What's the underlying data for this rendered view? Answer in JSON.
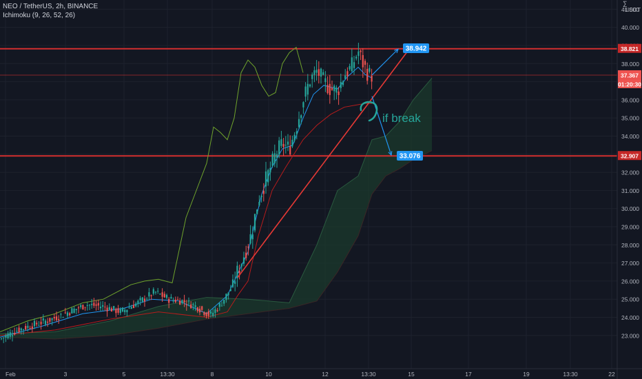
{
  "header": {
    "symbol_line": "NEO / TetherUS, 2h, BINANCE",
    "indicator_line": "Ichimoku (9, 26, 52, 26)"
  },
  "axis": {
    "currency": "USDT"
  },
  "price_axis": {
    "ticks": [
      "41.000",
      "40.000",
      "39.000",
      "38.000",
      "37.000",
      "36.000",
      "35.000",
      "34.000",
      "33.000",
      "32.000",
      "31.000",
      "30.000",
      "29.000",
      "28.000",
      "27.000",
      "26.000",
      "25.000",
      "24.000",
      "23.000"
    ],
    "tags": {
      "resistance": "38.821",
      "current": "37.367",
      "countdown": "01:20:30",
      "support": "32.907"
    }
  },
  "time_axis": {
    "ticks": [
      "Feb",
      "3",
      "5",
      "13:30",
      "8",
      "10",
      "12",
      "13:30",
      "15",
      "17",
      "19",
      "13:30",
      "22"
    ]
  },
  "annotations": {
    "target_up": "38.942",
    "target_down": "33.076",
    "note": "if break"
  },
  "colors": {
    "background": "#131722",
    "up": "#26a69a",
    "down": "#ef5350",
    "level_line": "#d32f2f",
    "tag_blue": "#2196f3",
    "note_text": "#26a69a",
    "lagging_span": "#6fa32c",
    "conversion_line": "#2196f3",
    "base_line": "#b71c1c",
    "cloud_bear": "#1b3a2c",
    "arrow": "#2196f3",
    "trendline": "#e53935"
  },
  "chart_data": {
    "type": "candlestick",
    "ylim": [
      22.5,
      41.5
    ],
    "xlim": [
      0,
      920
    ],
    "levels": [
      38.821,
      32.907
    ],
    "current_price": 37.367,
    "x_ticks": [
      {
        "label": "Feb",
        "x": 8
      },
      {
        "label": "3",
        "x": 95
      },
      {
        "label": "5",
        "x": 180
      },
      {
        "label": "13:30",
        "x": 243
      },
      {
        "label": "8",
        "x": 308
      },
      {
        "label": "10",
        "x": 390
      },
      {
        "label": "12",
        "x": 472
      },
      {
        "label": "13:30",
        "x": 535
      },
      {
        "label": "15",
        "x": 597
      },
      {
        "label": "17",
        "x": 680
      },
      {
        "label": "19",
        "x": 764
      },
      {
        "label": "13:30",
        "x": 828
      },
      {
        "label": "22",
        "x": 888
      }
    ],
    "candle_anchors": [
      [
        0,
        22.8
      ],
      [
        25,
        23.3
      ],
      [
        50,
        23.6
      ],
      [
        75,
        23.9
      ],
      [
        100,
        24.3
      ],
      [
        125,
        24.7
      ],
      [
        150,
        24.6
      ],
      [
        175,
        24.3
      ],
      [
        200,
        24.8
      ],
      [
        225,
        25.4
      ],
      [
        245,
        25.0
      ],
      [
        265,
        24.9
      ],
      [
        285,
        24.6
      ],
      [
        305,
        24.1
      ],
      [
        320,
        24.7
      ],
      [
        335,
        25.6
      ],
      [
        350,
        27.0
      ],
      [
        365,
        28.6
      ],
      [
        375,
        30.5
      ],
      [
        390,
        32.0
      ],
      [
        400,
        33.0
      ],
      [
        410,
        33.6
      ],
      [
        420,
        33.3
      ],
      [
        430,
        34.5
      ],
      [
        440,
        36.0
      ],
      [
        450,
        37.1
      ],
      [
        460,
        37.6
      ],
      [
        470,
        37.0
      ],
      [
        480,
        36.6
      ],
      [
        490,
        36.5
      ],
      [
        500,
        37.4
      ],
      [
        510,
        37.8
      ],
      [
        520,
        38.7
      ],
      [
        528,
        37.9
      ],
      [
        535,
        37.4
      ],
      [
        540,
        37.367
      ]
    ],
    "trendline": [
      [
        345,
        26.2
      ],
      [
        598,
        39.0
      ]
    ],
    "arrow_up": [
      [
        540,
        37.367
      ],
      [
        578,
        38.8
      ]
    ],
    "arrow_down": [
      [
        540,
        36.2
      ],
      [
        568,
        32.95
      ]
    ],
    "lagging_span": [
      [
        0,
        23.2
      ],
      [
        40,
        23.8
      ],
      [
        80,
        24.2
      ],
      [
        120,
        24.8
      ],
      [
        150,
        25.0
      ],
      [
        170,
        25.4
      ],
      [
        190,
        25.8
      ],
      [
        210,
        26.0
      ],
      [
        230,
        26.1
      ],
      [
        250,
        25.9
      ],
      [
        270,
        29.5
      ],
      [
        290,
        31.5
      ],
      [
        300,
        32.5
      ],
      [
        310,
        34.5
      ],
      [
        320,
        34.2
      ],
      [
        330,
        33.8
      ],
      [
        340,
        35.0
      ],
      [
        350,
        37.5
      ],
      [
        360,
        38.2
      ],
      [
        370,
        37.8
      ],
      [
        380,
        36.8
      ],
      [
        390,
        36.2
      ],
      [
        400,
        36.4
      ],
      [
        410,
        38.0
      ],
      [
        420,
        38.6
      ],
      [
        430,
        38.9
      ],
      [
        440,
        37.5
      ]
    ],
    "conversion_line": [
      [
        0,
        22.9
      ],
      [
        60,
        23.5
      ],
      [
        120,
        24.2
      ],
      [
        180,
        24.5
      ],
      [
        220,
        25.0
      ],
      [
        260,
        24.9
      ],
      [
        300,
        24.2
      ],
      [
        330,
        25.2
      ],
      [
        360,
        27.6
      ],
      [
        380,
        30.8
      ],
      [
        395,
        32.3
      ],
      [
        410,
        33.3
      ],
      [
        425,
        33.5
      ],
      [
        440,
        35.0
      ],
      [
        455,
        36.3
      ],
      [
        470,
        36.8
      ],
      [
        490,
        36.6
      ],
      [
        505,
        37.3
      ],
      [
        520,
        37.8
      ],
      [
        530,
        37.4
      ],
      [
        540,
        37.2
      ]
    ],
    "base_line": [
      [
        0,
        23.0
      ],
      [
        80,
        23.3
      ],
      [
        160,
        23.9
      ],
      [
        230,
        24.3
      ],
      [
        300,
        24.0
      ],
      [
        330,
        24.3
      ],
      [
        345,
        25.2
      ],
      [
        360,
        26.0
      ],
      [
        375,
        28.5
      ],
      [
        395,
        31.0
      ],
      [
        415,
        32.3
      ],
      [
        440,
        33.8
      ],
      [
        460,
        34.6
      ],
      [
        480,
        35.2
      ],
      [
        500,
        35.6
      ],
      [
        530,
        35.8
      ],
      [
        540,
        35.8
      ]
    ],
    "cloud_upper": [
      [
        0,
        23.1
      ],
      [
        80,
        23.2
      ],
      [
        160,
        23.8
      ],
      [
        230,
        24.6
      ],
      [
        300,
        25.1
      ],
      [
        360,
        25.0
      ],
      [
        420,
        24.8
      ],
      [
        460,
        28.0
      ],
      [
        490,
        31.0
      ],
      [
        520,
        31.8
      ],
      [
        540,
        33.8
      ],
      [
        560,
        34.0
      ],
      [
        580,
        34.8
      ],
      [
        600,
        36.0
      ],
      [
        627,
        37.2
      ]
    ],
    "cloud_lower": [
      [
        0,
        22.9
      ],
      [
        80,
        22.8
      ],
      [
        160,
        23.0
      ],
      [
        230,
        23.4
      ],
      [
        300,
        23.9
      ],
      [
        360,
        24.2
      ],
      [
        420,
        24.5
      ],
      [
        460,
        24.9
      ],
      [
        490,
        26.5
      ],
      [
        520,
        28.5
      ],
      [
        540,
        30.8
      ],
      [
        560,
        31.8
      ],
      [
        580,
        32.2
      ],
      [
        600,
        32.7
      ],
      [
        627,
        33.2
      ]
    ]
  }
}
